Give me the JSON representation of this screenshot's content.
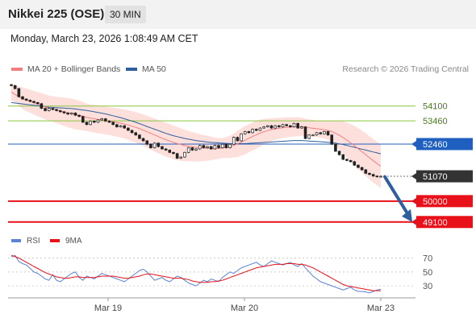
{
  "header": {
    "title": "Nikkei 225 (OSE)",
    "timeframe": "30 MIN",
    "datetime": "Monday, March 23, 2026 1:08:49 AM CET"
  },
  "legend": {
    "bollinger_label": "MA 20 + Bollinger Bands",
    "ma50_label": "MA 50",
    "credit": "Research © 2026 Trading Central"
  },
  "rsi_legend": {
    "rsi_label": "RSI",
    "ma_label": "9MA"
  },
  "colors": {
    "ma20": "#f08080",
    "ma50": "#2f5f9e",
    "band_fill": "#fde0dc",
    "resistance": "#8cc63e",
    "pivot": "#1f5fbf",
    "support": "#e8111a",
    "current": "#333333",
    "arrow": "#2f5f9e",
    "rsi": "#5b82d6",
    "rsi_ma": "#e8111a"
  },
  "chart_data": {
    "type": "line",
    "title": "Nikkei 225 (OSE)",
    "timeframe": "30 MIN",
    "ylim": [
      48780,
      55200
    ],
    "x_ticks": [
      "Mar 19",
      "Mar 20",
      "Mar 23"
    ],
    "levels": [
      {
        "value": 54100,
        "label": "54100",
        "kind": "resistance"
      },
      {
        "value": 53460,
        "label": "53460",
        "kind": "resistance"
      },
      {
        "value": 52460,
        "label": "52460",
        "kind": "pivot"
      },
      {
        "value": 51070,
        "label": "51070",
        "kind": "current"
      },
      {
        "value": 50000,
        "label": "50000",
        "kind": "support"
      },
      {
        "value": 49100,
        "label": "49100",
        "kind": "support"
      }
    ],
    "forecast_arrow": {
      "from": 51050,
      "to": 49100
    },
    "price": [
      54980,
      54850,
      54500,
      54400,
      54350,
      54300,
      54250,
      54200,
      54000,
      53900,
      54000,
      53950,
      53900,
      53850,
      53800,
      53750,
      53800,
      53700,
      53650,
      53400,
      53300,
      53450,
      53400,
      53500,
      53550,
      53450,
      53400,
      53300,
      53200,
      53250,
      53150,
      53050,
      52950,
      52850,
      52700,
      52600,
      52450,
      52300,
      52500,
      52350,
      52250,
      52200,
      52100,
      52050,
      51850,
      51900,
      52100,
      52300,
      52200,
      52250,
      52400,
      52300,
      52350,
      52250,
      52400,
      52300,
      52450,
      52300,
      52450,
      52750,
      52600,
      52900,
      53000,
      52950,
      53100,
      53050,
      53150,
      53200,
      53250,
      53150,
      53250,
      53200,
      53300,
      53250,
      53200,
      53350,
      53150,
      53200,
      52700,
      52850,
      52850,
      52950,
      52900,
      53000,
      52850,
      52450,
      52150,
      52000,
      51800,
      51750,
      51700,
      51550,
      51450,
      51350,
      51200,
      51150,
      51080,
      51050,
      51070
    ],
    "ma20": [
      54700,
      54600,
      54500,
      54420,
      54360,
      54300,
      54240,
      54180,
      54120,
      54060,
      54010,
      53970,
      53930,
      53890,
      53850,
      53810,
      53780,
      53740,
      53700,
      53660,
      53610,
      53580,
      53550,
      53520,
      53500,
      53480,
      53450,
      53420,
      53390,
      53360,
      53320,
      53280,
      53230,
      53180,
      53120,
      53060,
      52990,
      52920,
      52850,
      52780,
      52710,
      52650,
      52590,
      52530,
      52480,
      52440,
      52400,
      52370,
      52340,
      52320,
      52300,
      52290,
      52280,
      52270,
      52270,
      52270,
      52290,
      52310,
      52340,
      52400,
      52470,
      52550,
      52630,
      52710,
      52790,
      52860,
      52930,
      52990,
      53040,
      53080,
      53110,
      53140,
      53160,
      53180,
      53190,
      53200,
      53210,
      53210,
      53190,
      53160,
      53140,
      53120,
      53100,
      53080,
      53050,
      53000,
      52920,
      52840,
      52740,
      52630,
      52510,
      52390,
      52260,
      52130,
      52000,
      51870,
      51740,
      51620,
      51500
    ],
    "ma50": [
      54250,
      54230,
      54210,
      54190,
      54170,
      54150,
      54130,
      54110,
      54090,
      54070,
      54050,
      54040,
      54030,
      54020,
      54010,
      54000,
      53990,
      53970,
      53950,
      53930,
      53910,
      53880,
      53850,
      53820,
      53790,
      53760,
      53720,
      53680,
      53640,
      53600,
      53550,
      53500,
      53450,
      53400,
      53340,
      53280,
      53220,
      53160,
      53100,
      53040,
      52980,
      52920,
      52870,
      52820,
      52780,
      52740,
      52700,
      52670,
      52640,
      52610,
      52590,
      52570,
      52550,
      52530,
      52520,
      52510,
      52500,
      52490,
      52480,
      52480,
      52480,
      52480,
      52480,
      52490,
      52500,
      52510,
      52520,
      52530,
      52540,
      52550,
      52560,
      52570,
      52580,
      52590,
      52600,
      52610,
      52610,
      52610,
      52600,
      52590,
      52580,
      52570,
      52560,
      52550,
      52540,
      52520,
      52500,
      52470,
      52440,
      52400,
      52360,
      52320,
      52280,
      52240,
      52200,
      52160,
      52120,
      52080,
      52040
    ],
    "bb_upper": [
      55050,
      55000,
      54950,
      54900,
      54850,
      54800,
      54750,
      54700,
      54650,
      54600,
      54550,
      54520,
      54500,
      54480,
      54460,
      54440,
      54420,
      54380,
      54330,
      54270,
      54200,
      54170,
      54150,
      54120,
      54100,
      54080,
      54050,
      54030,
      54010,
      53980,
      53950,
      53920,
      53880,
      53840,
      53790,
      53740,
      53680,
      53620,
      53560,
      53500,
      53440,
      53380,
      53320,
      53260,
      53200,
      53140,
      53080,
      53020,
      52970,
      52930,
      52890,
      52850,
      52820,
      52780,
      52740,
      52720,
      52720,
      52760,
      52820,
      52920,
      53040,
      53140,
      53240,
      53320,
      53400,
      53460,
      53510,
      53540,
      53560,
      53570,
      53580,
      53590,
      53600,
      53610,
      53610,
      53620,
      53620,
      53600,
      53560,
      53520,
      53500,
      53480,
      53470,
      53460,
      53460,
      53450,
      53460,
      53460,
      53440,
      53390,
      53320,
      53240,
      53140,
      53030,
      52920,
      52800,
      52680,
      52560,
      52440
    ],
    "bb_lower": [
      54350,
      54250,
      54100,
      53980,
      53880,
      53800,
      53730,
      53660,
      53590,
      53520,
      53470,
      53420,
      53360,
      53300,
      53240,
      53180,
      53140,
      53100,
      53070,
      53050,
      53020,
      52990,
      52950,
      52920,
      52900,
      52880,
      52850,
      52810,
      52770,
      52740,
      52690,
      52640,
      52580,
      52520,
      52450,
      52380,
      52300,
      52220,
      52140,
      52060,
      51990,
      51920,
      51860,
      51800,
      51760,
      51740,
      51720,
      51720,
      51710,
      51710,
      51710,
      51730,
      51740,
      51760,
      51800,
      51820,
      51860,
      51860,
      51860,
      51880,
      51900,
      51960,
      52020,
      52100,
      52180,
      52260,
      52350,
      52440,
      52520,
      52590,
      52640,
      52690,
      52720,
      52750,
      52770,
      52780,
      52800,
      52820,
      52820,
      52800,
      52780,
      52760,
      52730,
      52700,
      52640,
      52550,
      52380,
      52220,
      52040,
      51870,
      51700,
      51540,
      51380,
      51230,
      51080,
      50940,
      50800,
      50680,
      50560
    ],
    "rsi": {
      "ylim": [
        15,
        80
      ],
      "ticks": [
        70,
        50,
        30
      ],
      "rsi": [
        72,
        74,
        65,
        62,
        60,
        55,
        50,
        48,
        44,
        40,
        38,
        46,
        38,
        36,
        40,
        44,
        48,
        50,
        42,
        38,
        44,
        42,
        40,
        44,
        48,
        46,
        44,
        42,
        40,
        38,
        36,
        40,
        44,
        48,
        52,
        54,
        50,
        44,
        38,
        40,
        42,
        38,
        36,
        40,
        44,
        42,
        38,
        34,
        32,
        30,
        34,
        38,
        36,
        40,
        38,
        36,
        42,
        46,
        50,
        48,
        52,
        56,
        58,
        60,
        62,
        64,
        60,
        58,
        62,
        66,
        64,
        62,
        60,
        62,
        64,
        60,
        58,
        62,
        56,
        50,
        44,
        40,
        36,
        34,
        32,
        30,
        28,
        26,
        24,
        26,
        28,
        24,
        22,
        22,
        21,
        20,
        22,
        24,
        25
      ],
      "ma9": [
        74,
        72,
        70,
        67,
        64,
        61,
        58,
        55,
        52,
        49,
        47,
        45,
        43,
        42,
        41,
        41,
        42,
        43,
        43,
        42,
        42,
        42,
        42,
        43,
        44,
        44,
        44,
        44,
        43,
        42,
        41,
        41,
        42,
        43,
        44,
        46,
        47,
        47,
        46,
        45,
        44,
        43,
        42,
        41,
        41,
        41,
        40,
        39,
        37,
        36,
        35,
        35,
        35,
        36,
        36,
        37,
        38,
        40,
        42,
        44,
        46,
        48,
        50,
        52,
        54,
        56,
        57,
        58,
        59,
        60,
        61,
        61,
        61,
        62,
        62,
        62,
        61,
        61,
        60,
        58,
        56,
        53,
        50,
        47,
        44,
        41,
        38,
        35,
        32,
        30,
        29,
        28,
        27,
        26,
        25,
        24,
        23,
        23,
        23
      ]
    }
  }
}
